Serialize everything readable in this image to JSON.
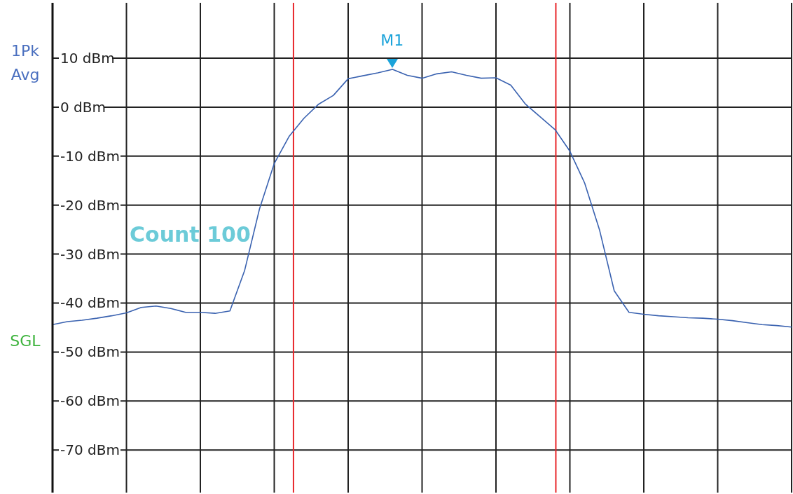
{
  "chart_data": {
    "type": "line",
    "categories": [
      null,
      null,
      null,
      null,
      null,
      null,
      null,
      null,
      null,
      null,
      null,
      null,
      null,
      null,
      null,
      null,
      null,
      null,
      null,
      null,
      null,
      null,
      null,
      null,
      null,
      null,
      null,
      null,
      null,
      null,
      null,
      null,
      null,
      null,
      null,
      null,
      null,
      null,
      null,
      null,
      null,
      null,
      null,
      null,
      null,
      null,
      null,
      null,
      null,
      null,
      null
    ],
    "series": [
      {
        "color": "#3a62b0",
        "values": [
          -44.4,
          -43.8,
          -43.5,
          -43.1,
          -42.6,
          -42.0,
          -40.9,
          -40.6,
          -41.1,
          -41.9,
          -41.9,
          -42.1,
          -41.6,
          -33.3,
          -20.8,
          -11.5,
          -6.0,
          -2.3,
          0.6,
          2.4,
          5.8,
          6.4,
          7.0,
          7.7,
          6.5,
          5.9,
          6.8,
          7.2,
          6.5,
          5.9,
          6.0,
          4.5,
          0.6,
          -2.0,
          -4.6,
          -9.0,
          -15.5,
          -25.0,
          -37.5,
          -41.9,
          -42.3,
          -42.6,
          -42.8,
          -43.0,
          -43.1,
          -43.3,
          -43.6,
          -44.0,
          -44.4,
          -44.6,
          -44.9
        ]
      }
    ],
    "ylim": [
      -78.7,
      21.3
    ],
    "yticks": [
      {
        "value": -70,
        "label": "-70 dBm"
      },
      {
        "value": -60,
        "label": "-60 dBm"
      },
      {
        "value": -50,
        "label": "-50 dBm"
      },
      {
        "value": -40,
        "label": "-40 dBm"
      },
      {
        "value": -30,
        "label": "-30 dBm"
      },
      {
        "value": -20,
        "label": "-20 dBm"
      },
      {
        "value": -10,
        "label": "-10 dBm"
      },
      {
        "value": 0,
        "label": "0 dBm"
      },
      {
        "value": 10,
        "label": "10 dBm"
      }
    ],
    "grid": true,
    "marker": "none",
    "line_style": "solid",
    "annotations": [
      "1Pk Avg",
      "SGL",
      "Count 100",
      {
        "text": "M1",
        "y": 7.7
      }
    ]
  }
}
